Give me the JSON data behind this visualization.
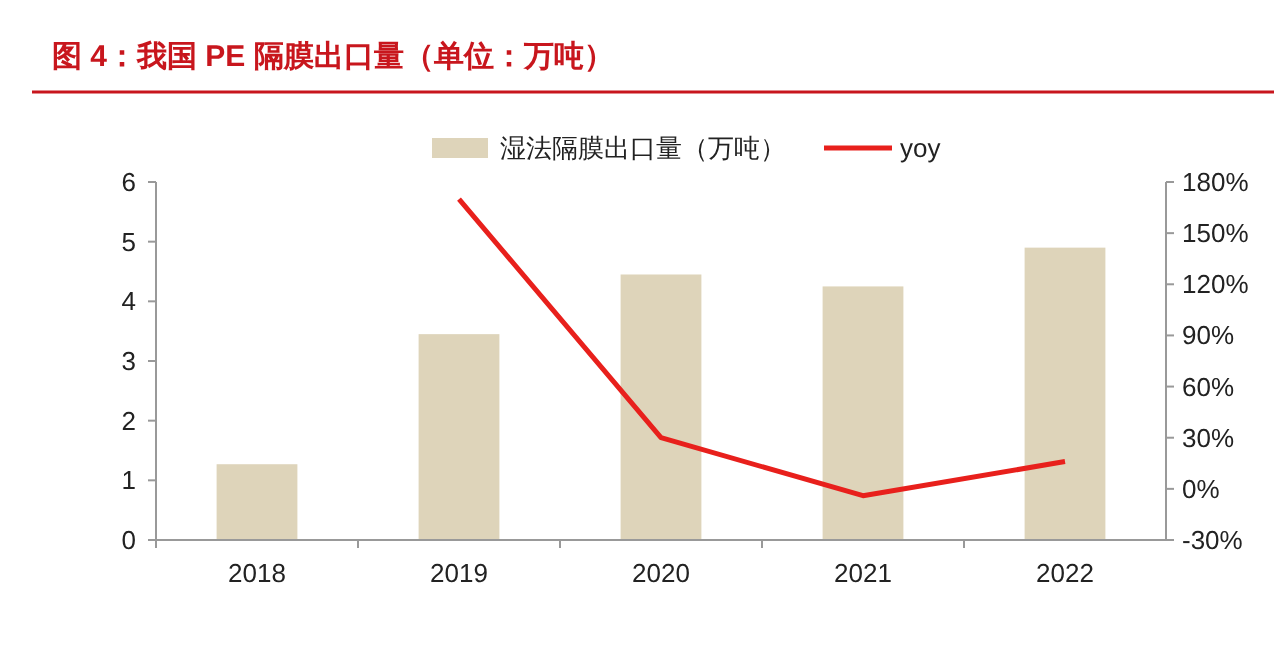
{
  "chart_data": {
    "type": "bar",
    "title": "图 4：我国 PE 隔膜出口量（单位：万吨）",
    "categories": [
      "2018",
      "2019",
      "2020",
      "2021",
      "2022"
    ],
    "series": [
      {
        "name": "湿法隔膜出口量（万吨）",
        "color": "#ded4ba",
        "values": [
          1.27,
          3.45,
          4.45,
          4.25,
          4.9
        ]
      },
      {
        "name": "yoy",
        "type": "line",
        "axis": "y2",
        "color": "#e8201c",
        "values": [
          null,
          170,
          30,
          -4,
          16
        ]
      }
    ],
    "ylim": [
      0,
      6
    ],
    "yticks": [
      0,
      1,
      2,
      3,
      4,
      5,
      6
    ],
    "y2lim": [
      -30,
      180
    ],
    "y2ticks": [
      {
        "value": -30,
        "label": "-30%"
      },
      {
        "value": 0,
        "label": "0%"
      },
      {
        "value": 30,
        "label": "30%"
      },
      {
        "value": 60,
        "label": "60%"
      },
      {
        "value": 90,
        "label": "90%"
      },
      {
        "value": 120,
        "label": "120%"
      },
      {
        "value": 150,
        "label": "150%"
      },
      {
        "value": 180,
        "label": "180%"
      }
    ],
    "legend": "top",
    "grid": false,
    "marker": "none",
    "line_style": "solid"
  }
}
